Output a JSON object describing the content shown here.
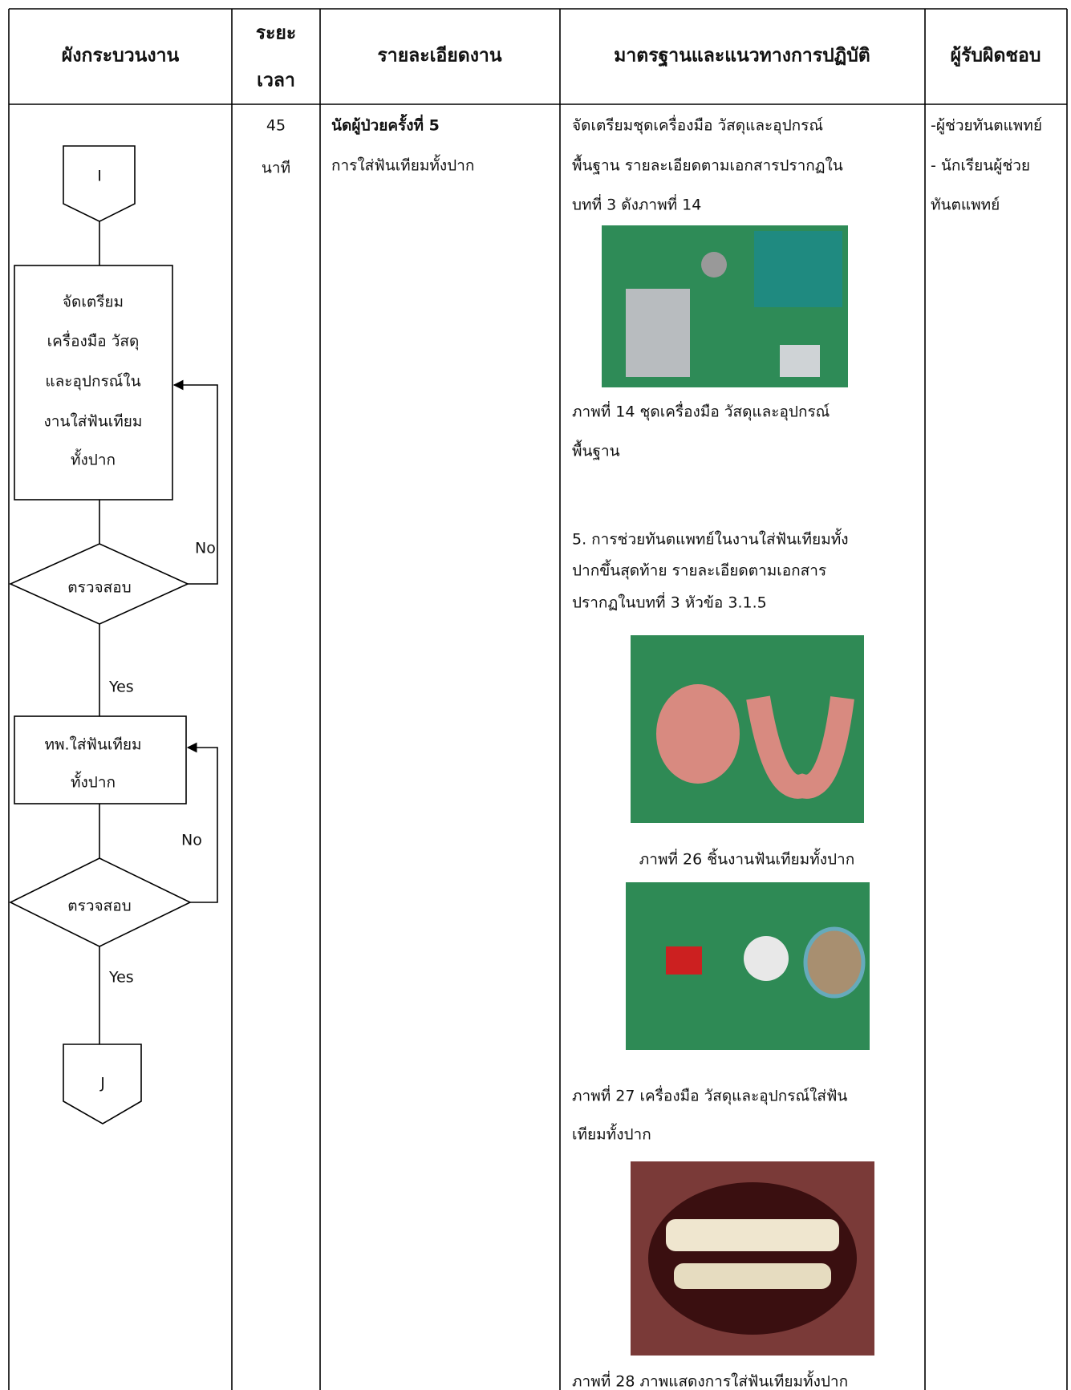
{
  "table": {
    "headers": [
      [
        "ผังกระบวนงาน"
      ],
      [
        "ระยะ",
        "เวลา"
      ],
      [
        "รายละเอียดงาน"
      ],
      [
        "มาตรฐานและแนวทางการปฏิบัติ"
      ],
      [
        "ผู้รับผิดชอบ"
      ]
    ],
    "row": {
      "flowchart": {
        "nodes": [
          {
            "label": "I"
          },
          {
            "lines": [
              "จัดเตรียม",
              "เครื่องมือ วัสดุ",
              "และอุปกรณ์ใน",
              "งานใส่ฟันเทียม",
              "ทั้งปาก"
            ]
          },
          {
            "label": "ตรวจสอบ"
          },
          {
            "lines": [
              "ทพ.ใส่ฟันเทียม",
              "ทั้งปาก"
            ]
          },
          {
            "label": "ตรวจสอบ"
          },
          {
            "label": "J"
          }
        ],
        "edge_labels": [
          "No",
          "Yes",
          "No",
          "Yes"
        ]
      },
      "duration": [
        "45",
        "นาที"
      ],
      "details": {
        "title": "นัดผู้ป่วยครั้งที่ 5",
        "lines": [
          "การใส่ฟันเทียมทั้งปาก"
        ]
      },
      "standards": {
        "intro": [
          "จัดเตรียมชุดเครื่องมือ วัสดุและอุปกรณ์",
          "พื้นฐาน รายละเอียดตามเอกสารปรากฏใน",
          "บทที่ 3 ดังภาพที่ 14"
        ],
        "caption_14": [
          "ภาพที่ 14  ชุดเครื่องมือ วัสดุและอุปกรณ์",
          "พื้นฐาน"
        ],
        "step": [
          "5. การช่วยทันตแพทย์ในงานใส่ฟันเทียมทั้ง",
          "ปากขึ้นสุดท้าย รายละเอียดตามเอกสาร",
          "ปรากฏในบทที่ 3 หัวข้อ 3.1.5"
        ],
        "caption_26": [
          "ภาพที่ 26 ชิ้นงานฟันเทียมทั้งปาก"
        ],
        "caption_27": [
          "ภาพที่ 27 เครื่องมือ วัสดุและอุปกรณ์ใส่ฟัน",
          "เทียมทั้งปาก"
        ],
        "caption_28": [
          "ภาพที่ 28 ภาพแสดงการใส่ฟันเทียมทั้งปาก"
        ]
      },
      "responsible": [
        "-ผู้ช่วยทันตแพทย์",
        "- นักเรียนผู้ช่วย",
        "ทันตแพทย์"
      ]
    }
  }
}
